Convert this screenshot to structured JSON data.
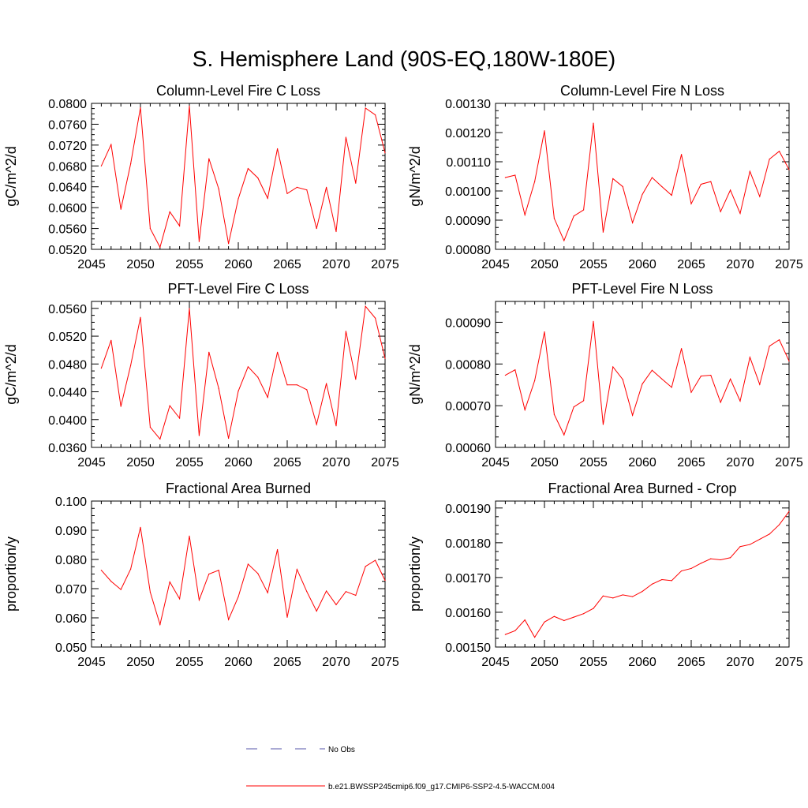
{
  "page": {
    "title": "S. Hemisphere Land (90S-EQ,180W-180E)"
  },
  "colors": {
    "series": "#ff0000",
    "no_obs": "#5555aa",
    "axis": "#000000"
  },
  "legend": {
    "placement": "bottom-center",
    "items": [
      {
        "label": "No Obs",
        "style": "dashed",
        "color": "#5555aa"
      },
      {
        "label": "b.e21.BWSSP245cmip6.f09_g17.CMIP6-SSP2-4.5-WACCM.004",
        "style": "solid",
        "color": "#ff0000"
      }
    ]
  },
  "chart_data": [
    {
      "type": "line",
      "title": "Column-Level Fire C Loss",
      "xlabel": "",
      "ylabel": "gC/m^2/d",
      "xlim": [
        2045,
        2075
      ],
      "ylim": [
        0.052,
        0.08
      ],
      "xticks": [
        "2045",
        "2050",
        "2055",
        "2060",
        "2065",
        "2070",
        "2075"
      ],
      "yticks": [
        "0.0520",
        "0.0560",
        "0.0600",
        "0.0640",
        "0.0680",
        "0.0720",
        "0.0760",
        "0.0800"
      ],
      "ytick_values": [
        0.052,
        0.056,
        0.06,
        0.064,
        0.068,
        0.072,
        0.076,
        0.08
      ],
      "grid": false,
      "x": [
        2046,
        2047,
        2048,
        2049,
        2050,
        2051,
        2052,
        2053,
        2054,
        2055,
        2056,
        2057,
        2058,
        2059,
        2060,
        2061,
        2062,
        2063,
        2064,
        2065,
        2066,
        2067,
        2068,
        2069,
        2070,
        2071,
        2072,
        2073,
        2074,
        2075
      ],
      "series": [
        {
          "values": [
            0.068,
            0.0721,
            0.0597,
            0.0684,
            0.0792,
            0.056,
            0.0524,
            0.0592,
            0.0565,
            0.0795,
            0.0535,
            0.0694,
            0.0636,
            0.0531,
            0.0617,
            0.0675,
            0.0657,
            0.0618,
            0.0713,
            0.0627,
            0.0639,
            0.0634,
            0.056,
            0.0639,
            0.0554,
            0.0735,
            0.0647,
            0.0791,
            0.0778,
            0.0705
          ]
        }
      ]
    },
    {
      "type": "line",
      "title": "Column-Level Fire N Loss",
      "xlabel": "",
      "ylabel": "gN/m^2/d",
      "xlim": [
        2045,
        2075
      ],
      "ylim": [
        0.0008,
        0.0013
      ],
      "xticks": [
        "2045",
        "2050",
        "2055",
        "2060",
        "2065",
        "2070",
        "2075"
      ],
      "yticks": [
        "0.00080",
        "0.00090",
        "0.00100",
        "0.00110",
        "0.00120",
        "0.00130"
      ],
      "ytick_values": [
        0.0008,
        0.0009,
        0.001,
        0.0011,
        0.0012,
        0.0013
      ],
      "grid": false,
      "x": [
        2046,
        2047,
        2048,
        2049,
        2050,
        2051,
        2052,
        2053,
        2054,
        2055,
        2056,
        2057,
        2058,
        2059,
        2060,
        2061,
        2062,
        2063,
        2064,
        2065,
        2066,
        2067,
        2068,
        2069,
        2070,
        2071,
        2072,
        2073,
        2074,
        2075
      ],
      "series": [
        {
          "values": [
            0.001046,
            0.001054,
            0.000918,
            0.001032,
            0.001206,
            0.000906,
            0.00083,
            0.000914,
            0.000935,
            0.001232,
            0.000859,
            0.001042,
            0.001015,
            0.000891,
            0.000988,
            0.001046,
            0.001015,
            0.000985,
            0.001125,
            0.000956,
            0.001023,
            0.001032,
            0.000929,
            0.001003,
            0.000923,
            0.001067,
            0.000981,
            0.001109,
            0.001136,
            0.001073
          ]
        }
      ]
    },
    {
      "type": "line",
      "title": "PFT-Level Fire C Loss",
      "xlabel": "",
      "ylabel": "gC/m^2/d",
      "xlim": [
        2045,
        2075
      ],
      "ylim": [
        0.036,
        0.057
      ],
      "xticks": [
        "2045",
        "2050",
        "2055",
        "2060",
        "2065",
        "2070",
        "2075"
      ],
      "yticks": [
        "0.0360",
        "0.0400",
        "0.0440",
        "0.0480",
        "0.0520",
        "0.0560"
      ],
      "ytick_values": [
        0.036,
        0.04,
        0.044,
        0.048,
        0.052,
        0.056
      ],
      "grid": false,
      "x": [
        2046,
        2047,
        2048,
        2049,
        2050,
        2051,
        2052,
        2053,
        2054,
        2055,
        2056,
        2057,
        2058,
        2059,
        2060,
        2061,
        2062,
        2063,
        2064,
        2065,
        2066,
        2067,
        2068,
        2069,
        2070,
        2071,
        2072,
        2073,
        2074,
        2075
      ],
      "series": [
        {
          "values": [
            0.0474,
            0.0514,
            0.0419,
            0.0478,
            0.0547,
            0.0389,
            0.0372,
            0.042,
            0.0402,
            0.056,
            0.0377,
            0.0497,
            0.0445,
            0.0373,
            0.0441,
            0.0476,
            0.0461,
            0.0432,
            0.0497,
            0.045,
            0.045,
            0.0443,
            0.0393,
            0.0452,
            0.0391,
            0.0527,
            0.0458,
            0.0563,
            0.0546,
            0.0488
          ]
        }
      ]
    },
    {
      "type": "line",
      "title": "PFT-Level Fire N Loss",
      "xlabel": "",
      "ylabel": "gN/m^2/d",
      "xlim": [
        2045,
        2075
      ],
      "ylim": [
        0.0006,
        0.00095
      ],
      "xticks": [
        "2045",
        "2050",
        "2055",
        "2060",
        "2065",
        "2070",
        "2075"
      ],
      "yticks": [
        "0.00060",
        "0.00070",
        "0.00080",
        "0.00090"
      ],
      "ytick_values": [
        0.0006,
        0.0007,
        0.0008,
        0.0009
      ],
      "grid": false,
      "x": [
        2046,
        2047,
        2048,
        2049,
        2050,
        2051,
        2052,
        2053,
        2054,
        2055,
        2056,
        2057,
        2058,
        2059,
        2060,
        2061,
        2062,
        2063,
        2064,
        2065,
        2066,
        2067,
        2068,
        2069,
        2070,
        2071,
        2072,
        2073,
        2074,
        2075
      ],
      "series": [
        {
          "values": [
            0.000773,
            0.000786,
            0.00069,
            0.00076,
            0.000877,
            0.000679,
            0.00063,
            0.000697,
            0.000712,
            0.000902,
            0.000655,
            0.000793,
            0.000763,
            0.000677,
            0.000752,
            0.000785,
            0.000764,
            0.000744,
            0.000837,
            0.000732,
            0.000771,
            0.000773,
            0.000708,
            0.000764,
            0.000711,
            0.000816,
            0.000751,
            0.000843,
            0.000858,
            0.000807
          ]
        }
      ]
    },
    {
      "type": "line",
      "title": "Fractional Area Burned",
      "xlabel": "",
      "ylabel": "proportion/y",
      "xlim": [
        2045,
        2075
      ],
      "ylim": [
        0.05,
        0.1
      ],
      "xticks": [
        "2045",
        "2050",
        "2055",
        "2060",
        "2065",
        "2070",
        "2075"
      ],
      "yticks": [
        "0.050",
        "0.060",
        "0.070",
        "0.080",
        "0.090",
        "0.100"
      ],
      "ytick_values": [
        0.05,
        0.06,
        0.07,
        0.08,
        0.09,
        0.1
      ],
      "grid": false,
      "x": [
        2046,
        2047,
        2048,
        2049,
        2050,
        2051,
        2052,
        2053,
        2054,
        2055,
        2056,
        2057,
        2058,
        2059,
        2060,
        2061,
        2062,
        2063,
        2064,
        2065,
        2066,
        2067,
        2068,
        2069,
        2070,
        2071,
        2072,
        2073,
        2074,
        2075
      ],
      "series": [
        {
          "values": [
            0.0763,
            0.0725,
            0.0697,
            0.0767,
            0.091,
            0.0688,
            0.0577,
            0.0723,
            0.0665,
            0.088,
            0.0661,
            0.075,
            0.0763,
            0.0594,
            0.0672,
            0.0784,
            0.0752,
            0.0686,
            0.0834,
            0.0602,
            0.0766,
            0.069,
            0.0623,
            0.0692,
            0.0645,
            0.069,
            0.0677,
            0.0776,
            0.0797,
            0.0728
          ]
        }
      ]
    },
    {
      "type": "line",
      "title": "Fractional Area Burned - Crop",
      "xlabel": "",
      "ylabel": "proportion/y",
      "xlim": [
        2045,
        2075
      ],
      "ylim": [
        0.0015,
        0.00192
      ],
      "xticks": [
        "2045",
        "2050",
        "2055",
        "2060",
        "2065",
        "2070",
        "2075"
      ],
      "yticks": [
        "0.00150",
        "0.00160",
        "0.00170",
        "0.00180",
        "0.00190"
      ],
      "ytick_values": [
        0.0015,
        0.0016,
        0.0017,
        0.0018,
        0.0019
      ],
      "grid": false,
      "x": [
        2046,
        2047,
        2048,
        2049,
        2050,
        2051,
        2052,
        2053,
        2054,
        2055,
        2056,
        2057,
        2058,
        2059,
        2060,
        2061,
        2062,
        2063,
        2064,
        2065,
        2066,
        2067,
        2068,
        2069,
        2070,
        2071,
        2072,
        2073,
        2074,
        2075
      ],
      "series": [
        {
          "values": [
            0.001536,
            0.001547,
            0.001578,
            0.001528,
            0.001572,
            0.001588,
            0.001576,
            0.001586,
            0.001596,
            0.001611,
            0.001647,
            0.001641,
            0.00165,
            0.001645,
            0.00166,
            0.001681,
            0.001694,
            0.001691,
            0.001719,
            0.001726,
            0.001741,
            0.001754,
            0.001751,
            0.001757,
            0.001789,
            0.001795,
            0.00181,
            0.001825,
            0.001852,
            0.00189
          ]
        }
      ]
    }
  ]
}
